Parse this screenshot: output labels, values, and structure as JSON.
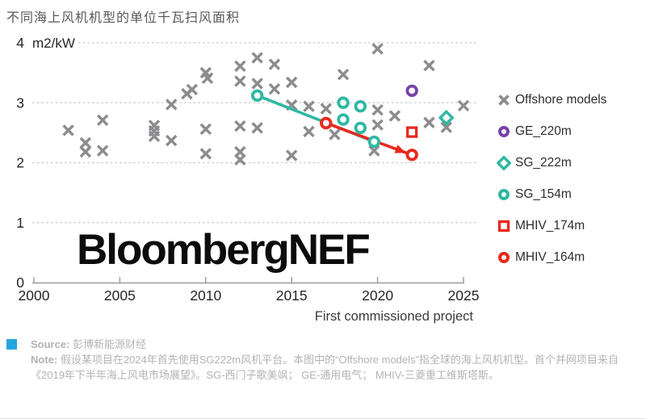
{
  "title": "不同海上风机机型的单位千瓦扫风面积",
  "chart_data": {
    "type": "scatter",
    "unit_label": "m2/kW",
    "xlabel": "First commissioned project",
    "watermark": "BloombergNEF",
    "x_ticks": [
      2000,
      2005,
      2010,
      2015,
      2020,
      2025
    ],
    "y_ticks": [
      0,
      1,
      2,
      3,
      4
    ],
    "xlim": [
      2000,
      2025
    ],
    "ylim": [
      0,
      4
    ],
    "grid": "dotted horizontal",
    "legend_position": "right",
    "colors": {
      "gray": "#8c8c90",
      "purple": "#7743a8",
      "teal": "#2fb8a3",
      "red": "#e8291e"
    },
    "series": [
      {
        "name": "Offshore models",
        "marker": "x",
        "color": "#8c8c90",
        "points": [
          [
            2002,
            2.54
          ],
          [
            2003,
            2.33
          ],
          [
            2003,
            2.18
          ],
          [
            2004,
            2.71
          ],
          [
            2004,
            2.2
          ],
          [
            2007,
            2.62
          ],
          [
            2007,
            2.53
          ],
          [
            2007,
            2.44
          ],
          [
            2008,
            2.37
          ],
          [
            2008,
            2.97
          ],
          [
            2008.9,
            3.15
          ],
          [
            2009.2,
            3.22
          ],
          [
            2010,
            3.5
          ],
          [
            2010.1,
            3.41
          ],
          [
            2010,
            2.56
          ],
          [
            2010,
            2.15
          ],
          [
            2012,
            3.61
          ],
          [
            2012,
            3.36
          ],
          [
            2012,
            2.61
          ],
          [
            2012,
            2.18
          ],
          [
            2012,
            2.05
          ],
          [
            2013,
            3.75
          ],
          [
            2013,
            3.32
          ],
          [
            2013,
            2.58
          ],
          [
            2014,
            3.64
          ],
          [
            2014,
            3.23
          ],
          [
            2015,
            3.34
          ],
          [
            2015,
            2.96
          ],
          [
            2015,
            2.12
          ],
          [
            2016,
            2.94
          ],
          [
            2016,
            2.52
          ],
          [
            2017,
            2.9
          ],
          [
            2017.5,
            2.47
          ],
          [
            2018,
            3.47
          ],
          [
            2019.8,
            2.2
          ],
          [
            2020,
            3.9
          ],
          [
            2020,
            2.88
          ],
          [
            2020,
            2.63
          ],
          [
            2021,
            2.78
          ],
          [
            2023,
            3.62
          ],
          [
            2023,
            2.67
          ],
          [
            2024,
            2.59
          ],
          [
            2025,
            2.95
          ]
        ]
      },
      {
        "name": "GE_220m",
        "marker": "circle",
        "color": "#7743a8",
        "points": [
          [
            2022,
            3.2
          ]
        ]
      },
      {
        "name": "SG_222m",
        "marker": "diamond",
        "color": "#2fb8a3",
        "points": [
          [
            2024,
            2.75
          ]
        ]
      },
      {
        "name": "SG_154m",
        "marker": "circle",
        "color": "#2fb8a3",
        "points": [
          [
            2013,
            3.12
          ],
          [
            2018,
            3.0
          ],
          [
            2018,
            2.72
          ],
          [
            2019,
            2.94
          ],
          [
            2019,
            2.58
          ],
          [
            2019.8,
            2.35
          ]
        ],
        "line": [
          [
            2013,
            3.12
          ],
          [
            2019.8,
            2.35
          ]
        ]
      },
      {
        "name": "MHIV_174m",
        "marker": "square",
        "color": "#e8291e",
        "points": [
          [
            2022,
            2.51
          ]
        ]
      },
      {
        "name": "MHIV_164m",
        "marker": "circle",
        "color": "#e8291e",
        "points": [
          [
            2017,
            2.66
          ],
          [
            2022,
            2.13
          ]
        ],
        "line": [
          [
            2017,
            2.66
          ],
          [
            2022,
            2.13
          ]
        ],
        "arrow": true
      }
    ]
  },
  "footer": {
    "source_label": "Source:",
    "source_text": "彭博新能源财经",
    "note_label": "Note:",
    "note_text": "假设某项目在2024年首先使用SG222m风机平台。本图中的“Offshore models”指全球的海上风机机型。首个并网项目来自《2019年下半年海上风电市场展望》。SG-西门子歌美飒； GE-通用电气； MHIV-三菱重工维斯塔斯。"
  }
}
